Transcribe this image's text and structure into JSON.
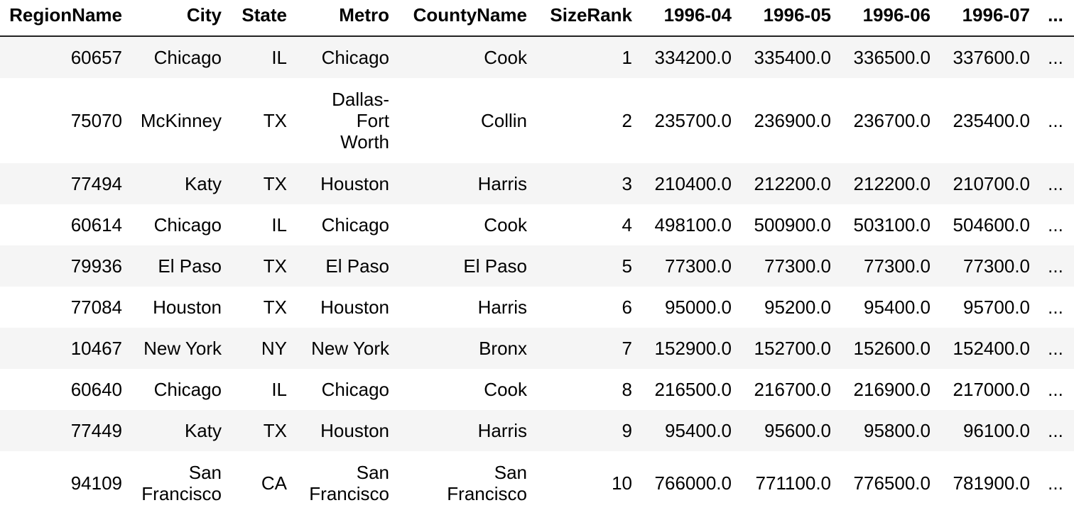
{
  "table": {
    "headers": [
      "RegionName",
      "City",
      "State",
      "Metro",
      "CountyName",
      "SizeRank",
      "1996-04",
      "1996-05",
      "1996-06",
      "1996-07",
      "..."
    ],
    "rows": [
      [
        "60657",
        "Chicago",
        "IL",
        "Chicago",
        "Cook",
        "1",
        "334200.0",
        "335400.0",
        "336500.0",
        "337600.0",
        "..."
      ],
      [
        "75070",
        "McKinney",
        "TX",
        "Dallas-\nFort\nWorth",
        "Collin",
        "2",
        "235700.0",
        "236900.0",
        "236700.0",
        "235400.0",
        "..."
      ],
      [
        "77494",
        "Katy",
        "TX",
        "Houston",
        "Harris",
        "3",
        "210400.0",
        "212200.0",
        "212200.0",
        "210700.0",
        "..."
      ],
      [
        "60614",
        "Chicago",
        "IL",
        "Chicago",
        "Cook",
        "4",
        "498100.0",
        "500900.0",
        "503100.0",
        "504600.0",
        "..."
      ],
      [
        "79936",
        "El Paso",
        "TX",
        "El Paso",
        "El Paso",
        "5",
        "77300.0",
        "77300.0",
        "77300.0",
        "77300.0",
        "..."
      ],
      [
        "77084",
        "Houston",
        "TX",
        "Houston",
        "Harris",
        "6",
        "95000.0",
        "95200.0",
        "95400.0",
        "95700.0",
        "..."
      ],
      [
        "10467",
        "New York",
        "NY",
        "New York",
        "Bronx",
        "7",
        "152900.0",
        "152700.0",
        "152600.0",
        "152400.0",
        "..."
      ],
      [
        "60640",
        "Chicago",
        "IL",
        "Chicago",
        "Cook",
        "8",
        "216500.0",
        "216700.0",
        "216900.0",
        "217000.0",
        "..."
      ],
      [
        "77449",
        "Katy",
        "TX",
        "Houston",
        "Harris",
        "9",
        "95400.0",
        "95600.0",
        "95800.0",
        "96100.0",
        "..."
      ],
      [
        "94109",
        "San\nFrancisco",
        "CA",
        "San\nFrancisco",
        "San\nFrancisco",
        "10",
        "766000.0",
        "771100.0",
        "776500.0",
        "781900.0",
        "..."
      ]
    ]
  },
  "colors": {
    "odd_row": "#f5f5f5",
    "even_row": "#ffffff",
    "header_rule": "#222222"
  }
}
